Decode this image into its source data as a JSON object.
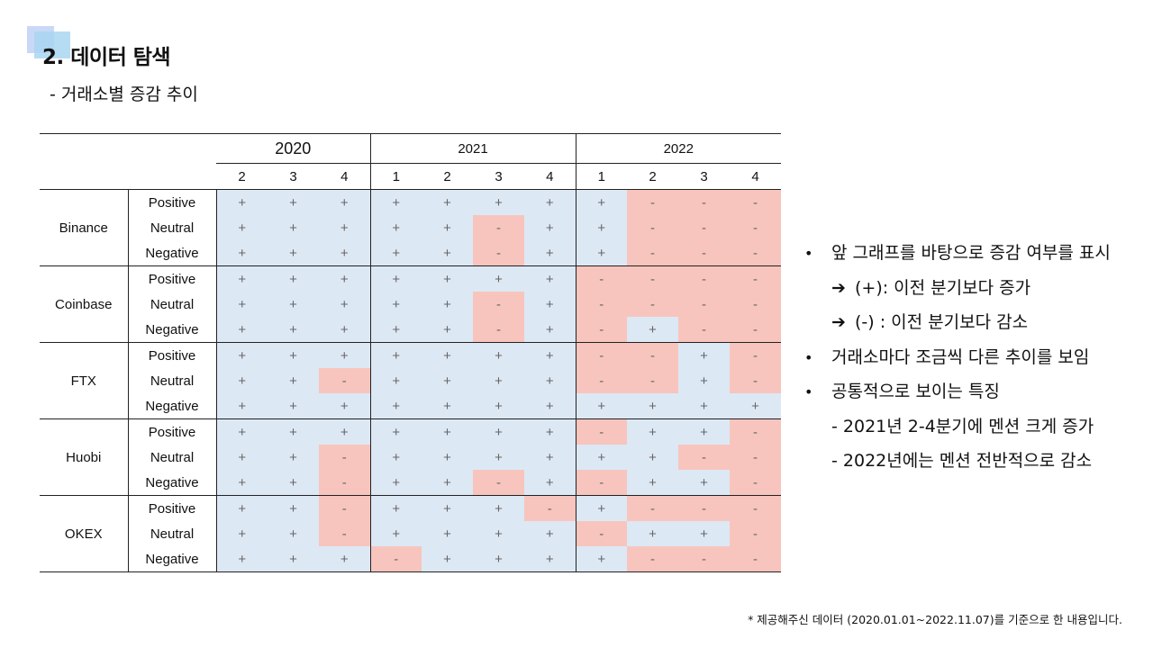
{
  "slide": {
    "title": "2. 데이터 탐색",
    "subtitle": "- 거래소별 증감 추이",
    "footnote": "* 제공해주신 데이터 (2020.01.01~2022.11.07)를 기준으로 한 내용입니다."
  },
  "table": {
    "years": [
      {
        "label": "2020",
        "quarters": [
          "2",
          "3",
          "4"
        ]
      },
      {
        "label": "2021",
        "quarters": [
          "1",
          "2",
          "3",
          "4"
        ]
      },
      {
        "label": "2022",
        "quarters": [
          "1",
          "2",
          "3",
          "4"
        ]
      }
    ],
    "exchanges": [
      {
        "name": "Binance",
        "rows": [
          {
            "label": "Positive",
            "cells": [
              "+",
              "+",
              "+",
              "+",
              "+",
              "+",
              "+",
              "+",
              "-",
              "-",
              "-"
            ]
          },
          {
            "label": "Neutral",
            "cells": [
              "+",
              "+",
              "+",
              "+",
              "+",
              "-",
              "+",
              "+",
              "-",
              "-",
              "-"
            ]
          },
          {
            "label": "Negative",
            "cells": [
              "+",
              "+",
              "+",
              "+",
              "+",
              "-",
              "+",
              "+",
              "-",
              "-",
              "-"
            ]
          }
        ]
      },
      {
        "name": "Coinbase",
        "rows": [
          {
            "label": "Positive",
            "cells": [
              "+",
              "+",
              "+",
              "+",
              "+",
              "+",
              "+",
              "-",
              "-",
              "-",
              "-"
            ]
          },
          {
            "label": "Neutral",
            "cells": [
              "+",
              "+",
              "+",
              "+",
              "+",
              "-",
              "+",
              "-",
              "-",
              "-",
              "-"
            ]
          },
          {
            "label": "Negative",
            "cells": [
              "+",
              "+",
              "+",
              "+",
              "+",
              "-",
              "+",
              "-",
              "+",
              "-",
              "-"
            ]
          }
        ]
      },
      {
        "name": "FTX",
        "rows": [
          {
            "label": "Positive",
            "cells": [
              "+",
              "+",
              "+",
              "+",
              "+",
              "+",
              "+",
              "-",
              "-",
              "+",
              "-"
            ]
          },
          {
            "label": "Neutral",
            "cells": [
              "+",
              "+",
              "-",
              "+",
              "+",
              "+",
              "+",
              "-",
              "-",
              "+",
              "-"
            ]
          },
          {
            "label": "Negative",
            "cells": [
              "+",
              "+",
              "+",
              "+",
              "+",
              "+",
              "+",
              "+",
              "+",
              "+",
              "+"
            ]
          }
        ]
      },
      {
        "name": "Huobi",
        "rows": [
          {
            "label": "Positive",
            "cells": [
              "+",
              "+",
              "+",
              "+",
              "+",
              "+",
              "+",
              "-",
              "+",
              "+",
              "-"
            ]
          },
          {
            "label": "Neutral",
            "cells": [
              "+",
              "+",
              "-",
              "+",
              "+",
              "+",
              "+",
              "+",
              "+",
              "-",
              "-"
            ]
          },
          {
            "label": "Negative",
            "cells": [
              "+",
              "+",
              "-",
              "+",
              "+",
              "-",
              "+",
              "-",
              "+",
              "+",
              "-"
            ]
          }
        ]
      },
      {
        "name": "OKEX",
        "rows": [
          {
            "label": "Positive",
            "cells": [
              "+",
              "+",
              "-",
              "+",
              "+",
              "+",
              "-",
              "+",
              "-",
              "-",
              "-"
            ]
          },
          {
            "label": "Neutral",
            "cells": [
              "+",
              "+",
              "-",
              "+",
              "+",
              "+",
              "+",
              "-",
              "+",
              "+",
              "-"
            ]
          },
          {
            "label": "Negative",
            "cells": [
              "+",
              "+",
              "+",
              "-",
              "+",
              "+",
              "+",
              "+",
              "-",
              "-",
              "-"
            ]
          }
        ]
      }
    ],
    "colors": {
      "increase": "#dde8f5",
      "decrease": "#f7c5bd"
    }
  },
  "notes": {
    "b1": "앞 그래프를 바탕으로 증감 여부를 표시",
    "a1": "(+): 이전 분기보다 증가",
    "a2": "(-) : 이전 분기보다 감소",
    "b2": "거래소마다 조금씩 다른 추이를 보임",
    "b3": "공통적으로 보이는 특징",
    "d1": "- 2021년 2-4분기에 멘션 크게 증가",
    "d2": "- 2022년에는 멘션 전반적으로 감소",
    "bullet_symbol": "•",
    "arrow_symbol": "➔"
  }
}
